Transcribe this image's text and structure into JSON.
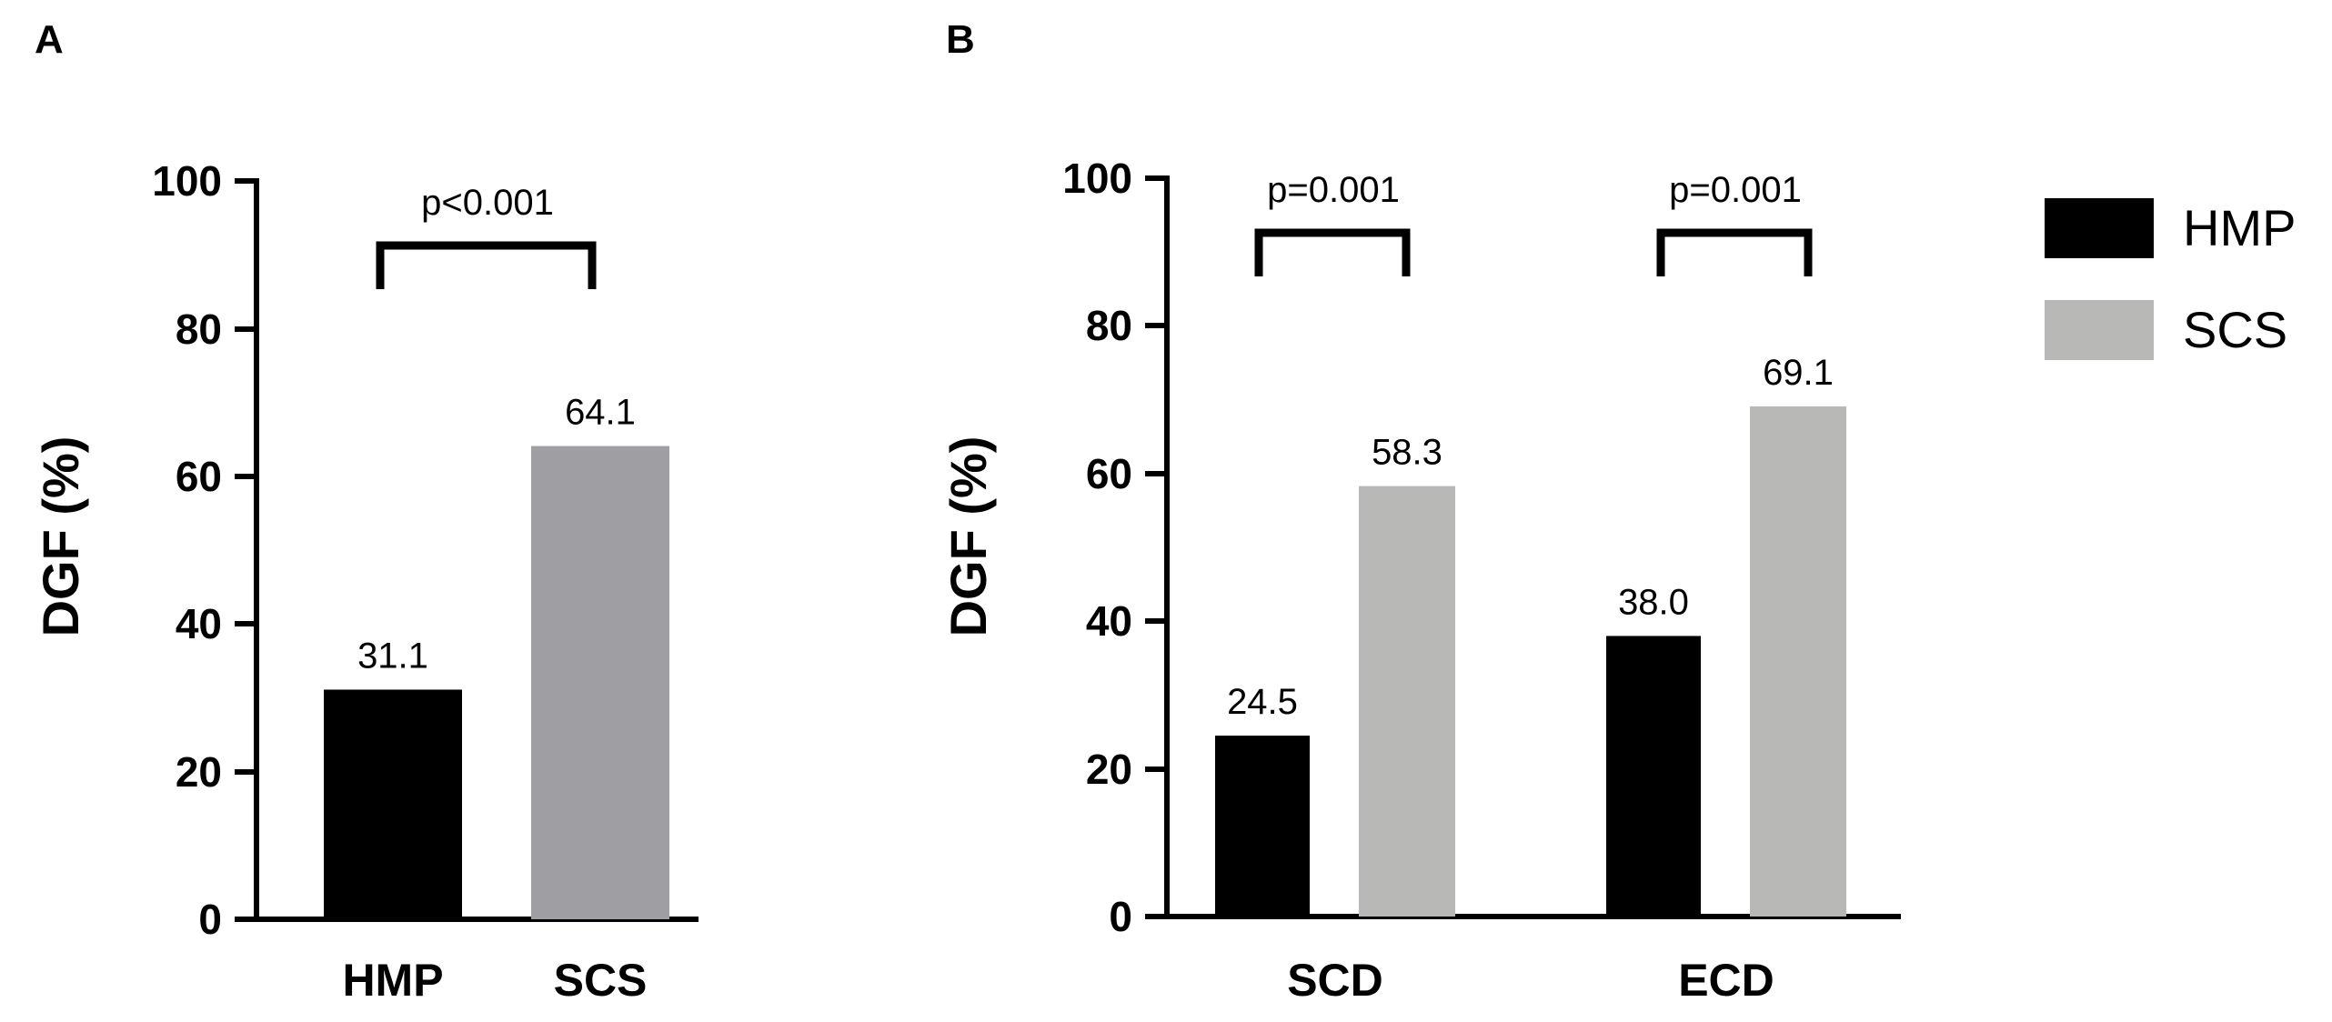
{
  "colors": {
    "hmp": "#000000",
    "scs_a": "#9f9fa3",
    "scs_b": "#b8b8b6"
  },
  "chart_data": [
    {
      "panel": "A",
      "type": "bar",
      "ylabel": "DGF (%)",
      "ylim": [
        0,
        100
      ],
      "yticks": [
        "0",
        "20",
        "40",
        "60",
        "80",
        "100"
      ],
      "categories": [
        "HMP",
        "SCS"
      ],
      "values": [
        31.1,
        64.1
      ],
      "value_labels": [
        "31.1",
        "64.1"
      ],
      "annotation": "p<0.001",
      "legend": false
    },
    {
      "panel": "B",
      "type": "bar",
      "ylabel": "DGF (%)",
      "ylim": [
        0,
        100
      ],
      "yticks": [
        "0",
        "20",
        "40",
        "60",
        "80",
        "100"
      ],
      "categories": [
        "SCD",
        "ECD"
      ],
      "series": [
        {
          "name": "HMP",
          "values": [
            24.5,
            38.0
          ],
          "labels": [
            "24.5",
            "38.0"
          ]
        },
        {
          "name": "SCS",
          "values": [
            58.3,
            69.1
          ],
          "labels": [
            "58.3",
            "69.1"
          ]
        }
      ],
      "annotations": [
        "p=0.001",
        "p=0.001"
      ],
      "legend_position": "right"
    }
  ]
}
